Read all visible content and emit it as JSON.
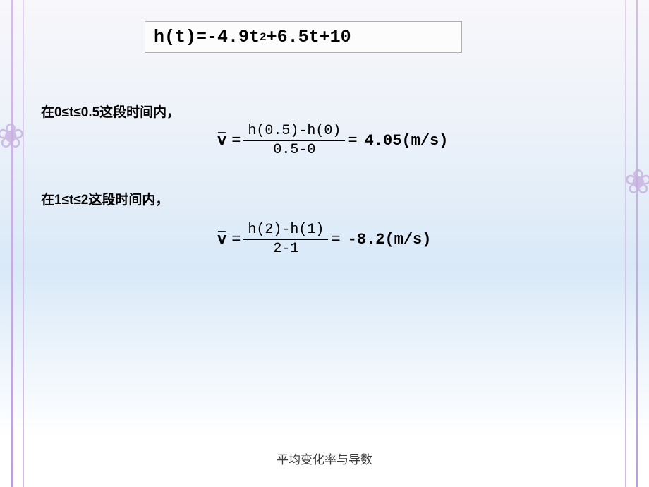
{
  "main_formula_html": "h(t)=-4.9t<sup>2</sup>+6.5t+10",
  "line1_text": "在0≤t≤0.5这段时间内，",
  "line2_text": "在1≤t≤2这段时间内，",
  "eq1": {
    "numerator": "h(0.5)-h(0)",
    "denominator": "0.5-0",
    "result": "4.05(m/s)"
  },
  "eq2": {
    "numerator": "h(2)-h(1)",
    "denominator": "2-1",
    "result": "-8.2(m/s)"
  },
  "footer_text": "平均变化率与导数",
  "colors": {
    "formula_border": "#b0b0b0",
    "text": "#000000",
    "stripe": "#c7b0e0"
  }
}
